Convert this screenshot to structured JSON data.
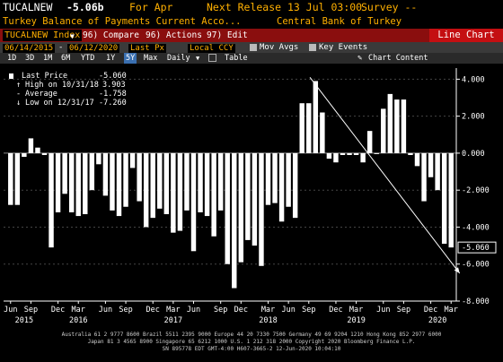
{
  "header": {
    "ticker": "TUCALNEW",
    "value": "-5.06b",
    "for_period": "For Apr",
    "next_release": "Next Release 13 Jul 03:00",
    "survey": "Survey --",
    "title": "Turkey Balance of Payments Current Acco...",
    "source": "Central Bank of Turkey"
  },
  "toolbar": {
    "security": "TUCALNEW Index",
    "compare": "96) Compare",
    "actions": "96) Actions",
    "edit": "97) Edit",
    "page": "Page 1/2",
    "chart_type": "Line Chart",
    "start_date": "06/14/2015",
    "end_date": "06/12/2020",
    "price_field": "Last Px",
    "currency": "Local CCY",
    "mov_avgs": "Mov Avgs",
    "key_events": "Key Events"
  },
  "periods": [
    "1D",
    "3D",
    "1M",
    "6M",
    "YTD",
    "1Y",
    "5Y",
    "Max"
  ],
  "selected_period": "5Y",
  "frequency": "Daily",
  "table_label": "Table",
  "chart_content_label": "Chart Content",
  "legend": {
    "last_price_label": "Last Price",
    "last_price_value": "-5.060",
    "high_label": "High on 10/31/18",
    "high_value": "3.903",
    "average_label": "Average",
    "average_value": "-1.758",
    "low_label": "Low on 12/31/17",
    "low_value": "-7.260"
  },
  "chart_data": {
    "type": "bar",
    "ylim": [
      -8,
      4.6
    ],
    "yticks": [
      4,
      2,
      0,
      -2,
      -4,
      -6,
      -8
    ],
    "ytick_labels": [
      "4.000",
      "2.000",
      "0.000",
      "-2.000",
      "-4.000",
      "-6.000",
      "-8.000"
    ],
    "last_value_label": "-5.060",
    "months_labels": [
      "Jun",
      "Sep",
      "Dec",
      "Mar",
      "Jun",
      "Sep",
      "Dec",
      "Mar",
      "Jun",
      "Sep",
      "Dec",
      "Mar",
      "Jun",
      "Sep",
      "Dec",
      "Mar",
      "Jun",
      "Sep",
      "Dec",
      "Mar"
    ],
    "year_labels": [
      "2015",
      "2016",
      "2017",
      "2018",
      "2019",
      "2020"
    ],
    "values": [
      -2.8,
      -2.8,
      -0.2,
      0.8,
      0.3,
      -0.1,
      -5.1,
      -3.2,
      -2.2,
      -3.2,
      -3.4,
      -3.3,
      -2.0,
      -0.6,
      -2.3,
      -3.1,
      -3.4,
      -2.9,
      -0.8,
      -2.6,
      -4.0,
      -3.5,
      -3.0,
      -3.3,
      -4.3,
      -4.2,
      -3.1,
      -5.3,
      -3.2,
      -3.4,
      -4.5,
      -3.1,
      -6.0,
      -7.3,
      -5.9,
      -4.7,
      -5.0,
      -6.1,
      -2.8,
      -2.7,
      -3.7,
      -2.9,
      -3.5,
      2.7,
      2.7,
      3.9,
      2.2,
      -0.3,
      -0.5,
      -0.1,
      -0.1,
      -0.1,
      -0.5,
      1.2,
      0.0,
      2.4,
      3.2,
      2.9,
      2.9,
      -0.1,
      -0.7,
      -2.6,
      -1.3,
      -2.0,
      -4.9,
      -5.1
    ],
    "trend_arrow": {
      "start_index": 50,
      "start_value": 3.2,
      "end_index": 66,
      "end_value": -6.5
    }
  },
  "footer": {
    "line1": "Australia 61 2 9777 8600  Brazil 5511 2395 9000  Europe 44 20 7330 7500  Germany 49 69 9204 1210  Hong Kong 852 2977 6000",
    "line2": "Japan 81 3 4565 8900        Singapore 65 6212 1000        U.S. 1 212 318 2000        Copyright 2020 Bloomberg Finance L.P.",
    "line3": "SN 895778 EDT  GMT-4:00 H607-3665-2 12-Jun-2020 10:04:10"
  }
}
